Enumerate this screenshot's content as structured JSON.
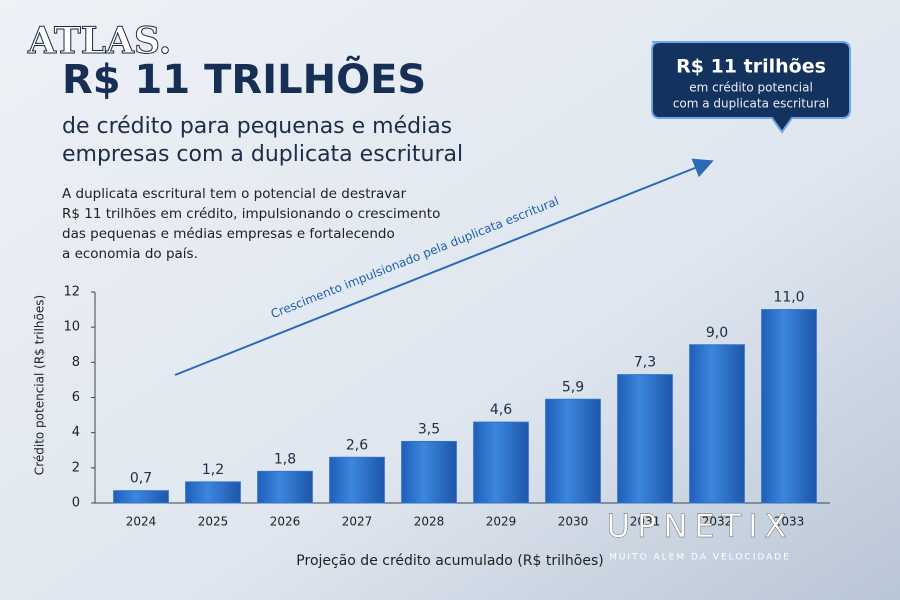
{
  "logo": "ATLAS.",
  "headline": "R$ 11 TRILHÕES",
  "subtitle": [
    "de crédito para pequenas e médias",
    "empresas com a duplicata escritural"
  ],
  "paragraph": [
    "A duplicata escritural tem o potencial de destravar",
    "R$ 11 trilhões em crédito, impulsionando o crescimento",
    "das pequenas e médias empresas e fortalecendo",
    "a economia do país."
  ],
  "callout": [
    "R$ 11 trilhões",
    "em crédito potencial",
    "com a duplicata escritural"
  ],
  "watermark": {
    "name": "UPNETIX",
    "tagline": "MUITO ALÉM DA VELOCIDADE"
  },
  "chart_data": {
    "type": "bar",
    "annotation": "Crescimento impulsionado pela duplicata escritural",
    "ylabel": "Crédito potencial (R$ trilhões)",
    "xlabel": "Projeção de crédito acumulado (R$ trilhões)",
    "categories": [
      "2024",
      "2025",
      "2026",
      "2027",
      "2028",
      "2029",
      "2030",
      "2031",
      "2032",
      "2033"
    ],
    "values": [
      0.7,
      1.2,
      1.8,
      2.6,
      3.5,
      4.6,
      5.9,
      7.3,
      9.0,
      11.0
    ],
    "value_labels": [
      "0,7",
      "1,2",
      "1,8",
      "2,6",
      "3,5",
      "4,6",
      "5,9",
      "7,3",
      "9,0",
      "11,0"
    ],
    "color": "#2f73d0",
    "ylim": [
      0,
      12
    ],
    "yticks": [
      0,
      2,
      4,
      6,
      8,
      10,
      12
    ],
    "grid": false
  }
}
